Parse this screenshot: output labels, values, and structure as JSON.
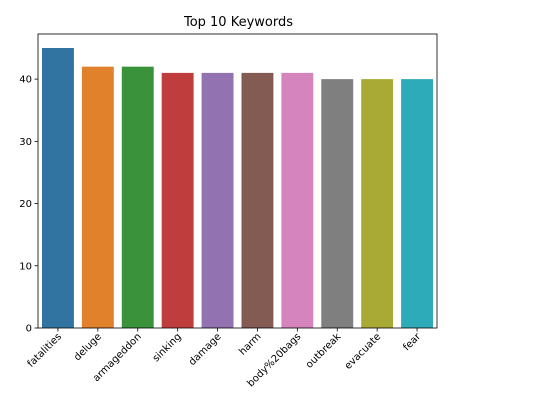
{
  "chart_data": {
    "type": "bar",
    "title": "Top 10 Keywords",
    "xlabel": "",
    "ylabel": "",
    "categories": [
      "fatalities",
      "deluge",
      "armageddon",
      "sinking",
      "damage",
      "harm",
      "body%20bags",
      "outbreak",
      "evacuate",
      "fear"
    ],
    "values": [
      45,
      42,
      42,
      41,
      41,
      41,
      41,
      40,
      40,
      40
    ],
    "colors": [
      "#3274a1",
      "#e1812c",
      "#3a923a",
      "#c03d3e",
      "#9372b2",
      "#845b53",
      "#d684bd",
      "#7f7f7f",
      "#a9aa35",
      "#2eabb8"
    ],
    "ylim": [
      0,
      47.25
    ],
    "yticks": [
      0,
      10,
      20,
      30,
      40
    ],
    "grid": false,
    "legend": "none"
  }
}
